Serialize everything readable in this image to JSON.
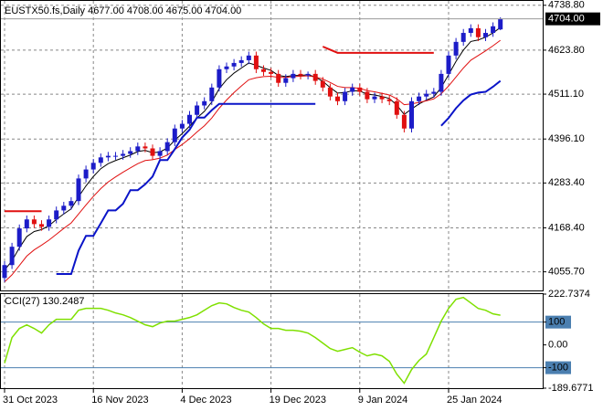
{
  "chart_data": [
    {
      "type": "candlestick",
      "title": "EUSTX50.fs,Daily  4677.00 4708.00 4675.00 4704.00",
      "categories": [
        "31 Oct 2023",
        null,
        null,
        null,
        null,
        null,
        null,
        null,
        null,
        null,
        null,
        null,
        "16 Nov 2023",
        null,
        null,
        null,
        null,
        null,
        null,
        null,
        null,
        null,
        null,
        null,
        "4 Dec 2023",
        null,
        null,
        null,
        null,
        null,
        null,
        null,
        null,
        null,
        null,
        null,
        "19 Dec 2023",
        null,
        null,
        null,
        null,
        null,
        null,
        null,
        null,
        null,
        null,
        null,
        "9 Jan 2024",
        null,
        null,
        null,
        null,
        null,
        null,
        null,
        null,
        null,
        null,
        null,
        "25 Jan 2024",
        null,
        null,
        null,
        null,
        null,
        null,
        null
      ],
      "open": [
        4040,
        4073,
        4120,
        4167,
        4190,
        4178,
        4171,
        4190,
        4213,
        4225,
        4237,
        4295,
        4318,
        4335,
        4349,
        4353,
        4353,
        4358,
        4365,
        4377,
        4372,
        4353,
        4365,
        4388,
        4423,
        4435,
        4458,
        4482,
        4493,
        4528,
        4575,
        4582,
        4591,
        4598,
        4610,
        4575,
        4568,
        4563,
        4540,
        4552,
        4563,
        4559,
        4563,
        4545,
        4528,
        4505,
        4493,
        4517,
        4528,
        4517,
        4498,
        4505,
        4498,
        4493,
        4458,
        4423,
        4493,
        4505,
        4512,
        4517,
        4563,
        4610,
        4645,
        4668,
        4680,
        4657,
        4668,
        4677
      ],
      "high": [
        4083,
        4130,
        4177,
        4200,
        4200,
        4188,
        4200,
        4223,
        4235,
        4247,
        4305,
        4328,
        4345,
        4359,
        4363,
        4363,
        4368,
        4375,
        4387,
        4387,
        4382,
        4375,
        4398,
        4433,
        4445,
        4468,
        4492,
        4503,
        4538,
        4585,
        4592,
        4601,
        4608,
        4620,
        4620,
        4585,
        4578,
        4573,
        4562,
        4573,
        4573,
        4569,
        4573,
        4555,
        4538,
        4515,
        4527,
        4538,
        4538,
        4527,
        4515,
        4515,
        4508,
        4503,
        4468,
        4503,
        4515,
        4522,
        4527,
        4573,
        4620,
        4655,
        4678,
        4690,
        4690,
        4678,
        4695,
        4708
      ],
      "low": [
        4030,
        4063,
        4110,
        4157,
        4168,
        4161,
        4161,
        4180,
        4203,
        4215,
        4227,
        4285,
        4308,
        4325,
        4339,
        4343,
        4343,
        4348,
        4355,
        4362,
        4343,
        4343,
        4355,
        4378,
        4413,
        4425,
        4448,
        4472,
        4483,
        4518,
        4565,
        4572,
        4581,
        4588,
        4565,
        4558,
        4553,
        4530,
        4530,
        4542,
        4549,
        4549,
        4535,
        4518,
        4495,
        4483,
        4483,
        4507,
        4507,
        4488,
        4488,
        4488,
        4483,
        4448,
        4413,
        4413,
        4483,
        4495,
        4502,
        4507,
        4553,
        4600,
        4635,
        4658,
        4647,
        4647,
        4658,
        4675
      ],
      "close": [
        4073,
        4120,
        4167,
        4190,
        4178,
        4171,
        4190,
        4213,
        4225,
        4237,
        4295,
        4318,
        4335,
        4349,
        4353,
        4353,
        4358,
        4365,
        4377,
        4372,
        4353,
        4365,
        4388,
        4423,
        4435,
        4458,
        4482,
        4493,
        4528,
        4575,
        4582,
        4591,
        4598,
        4610,
        4575,
        4568,
        4563,
        4540,
        4552,
        4563,
        4559,
        4563,
        4545,
        4528,
        4505,
        4493,
        4517,
        4528,
        4517,
        4498,
        4505,
        4498,
        4493,
        4458,
        4423,
        4493,
        4505,
        4512,
        4517,
        4563,
        4610,
        4645,
        4668,
        4680,
        4657,
        4668,
        4685,
        4704
      ],
      "up_color": "#1c1cc8",
      "down_color": "#e01010",
      "series": [
        {
          "color": "#000000",
          "width": 1,
          "values": [
            4060,
            4084,
            4117,
            4146,
            4159,
            4164,
            4174,
            4190,
            4204,
            4217,
            4248,
            4276,
            4300,
            4320,
            4333,
            4341,
            4348,
            4355,
            4364,
            4367,
            4361,
            4363,
            4373,
            4393,
            4410,
            4429,
            4450,
            4467,
            4491,
            4525,
            4548,
            4565,
            4578,
            4591,
            4585,
            4578,
            4572,
            4559,
            4556,
            4559,
            4559,
            4561,
            4555,
            4544,
            4528,
            4514,
            4515,
            4520,
            4519,
            4511,
            4509,
            4505,
            4500,
            4483,
            4459,
            4473,
            4486,
            4496,
            4504,
            4528,
            4561,
            4595,
            4624,
            4646,
            4650,
            4657,
            4668,
            4682
          ]
        },
        {
          "color": "#e01010",
          "width": 1,
          "values": [
            4030,
            4048,
            4072,
            4096,
            4112,
            4124,
            4137,
            4152,
            4167,
            4181,
            4204,
            4227,
            4249,
            4269,
            4286,
            4299,
            4311,
            4322,
            4333,
            4341,
            4343,
            4347,
            4355,
            4369,
            4382,
            4397,
            4414,
            4430,
            4450,
            4475,
            4496,
            4515,
            4532,
            4548,
            4553,
            4556,
            4557,
            4554,
            4554,
            4556,
            4557,
            4558,
            4555,
            4550,
            4541,
            4531,
            4528,
            4528,
            4526,
            4520,
            4517,
            4513,
            4509,
            4499,
            4484,
            4486,
            4490,
            4494,
            4499,
            4512,
            4532,
            4555,
            4578,
            4598,
            4610,
            4622,
            4635,
            4649
          ]
        },
        {
          "color": "#0a14c8",
          "width": 2,
          "values": [
            null,
            null,
            null,
            null,
            null,
            null,
            null,
            4050,
            4050,
            4050,
            4110,
            4148,
            4148,
            4180,
            4213,
            4213,
            4230,
            4265,
            4265,
            4280,
            4300,
            4342,
            4342,
            4370,
            4400,
            4420,
            4451,
            4451,
            4470,
            4486,
            4486,
            4486,
            4486,
            4486,
            4486,
            4486,
            4486,
            4486,
            4486,
            4486,
            4486,
            4486,
            4486,
            null,
            null,
            null,
            null,
            null,
            null,
            null,
            null,
            null,
            null,
            null,
            null,
            null,
            null,
            null,
            null,
            4430,
            4450,
            4475,
            4495,
            4510,
            4515,
            4517,
            4530,
            4545
          ]
        },
        {
          "color": "#e01010",
          "width": 2,
          "values": [
            4211,
            4211,
            4211,
            4211,
            4211,
            4211,
            null,
            null,
            null,
            null,
            null,
            null,
            null,
            null,
            null,
            null,
            null,
            null,
            null,
            null,
            null,
            null,
            null,
            null,
            null,
            null,
            null,
            null,
            null,
            null,
            null,
            null,
            null,
            null,
            null,
            null,
            null,
            null,
            null,
            null,
            null,
            null,
            null,
            4633,
            4625,
            4617,
            4617,
            4617,
            4617,
            4617,
            4617,
            4617,
            4617,
            4617,
            4617,
            4617,
            4617,
            4617,
            4617,
            null,
            null,
            null,
            null,
            null,
            null,
            null,
            null,
            null
          ]
        }
      ],
      "ylim": [
        4008,
        4750
      ],
      "yticks": [
        {
          "value": 4738.8,
          "label": "4738.80"
        },
        {
          "value": 4623.8,
          "label": "4623.80"
        },
        {
          "value": 4511.1,
          "label": "4511.10"
        },
        {
          "value": 4396.1,
          "label": "4396.10"
        },
        {
          "value": 4283.4,
          "label": "4283.40"
        },
        {
          "value": 4168.4,
          "label": "4168.40"
        },
        {
          "value": 4055.7,
          "label": "4055.70"
        }
      ],
      "last_price": {
        "value": 4704,
        "label": "4704.00"
      },
      "grid": true
    },
    {
      "type": "line",
      "title": "CCI(27) 130.2487",
      "series": [
        {
          "color": "#7fe000",
          "width": 1.5,
          "values": [
            -80,
            32,
            72,
            88,
            72,
            52,
            88,
            112,
            112,
            112,
            152,
            160,
            160,
            160,
            152,
            140,
            132,
            120,
            104,
            88,
            80,
            96,
            104,
            104,
            112,
            120,
            132,
            152,
            172,
            184,
            180,
            164,
            152,
            144,
            120,
            92,
            72,
            72,
            64,
            64,
            60,
            52,
            32,
            8,
            -16,
            -28,
            -20,
            -12,
            -32,
            -48,
            -40,
            -48,
            -72,
            -128,
            -168,
            -108,
            -68,
            -40,
            32,
            104,
            160,
            200,
            208,
            184,
            160,
            152,
            136,
            130.2487
          ]
        }
      ],
      "ylim": [
        -189.6771,
        222.7374
      ],
      "yticks": [
        {
          "value": 222.7374,
          "label": "222.7374"
        },
        100,
        {
          "value": 0,
          "label": "0.00"
        },
        -100,
        {
          "value": -189.6771,
          "label": "-189.6771"
        }
      ],
      "levels": [
        100,
        -100
      ],
      "level_color": "#4b7fb0"
    }
  ]
}
